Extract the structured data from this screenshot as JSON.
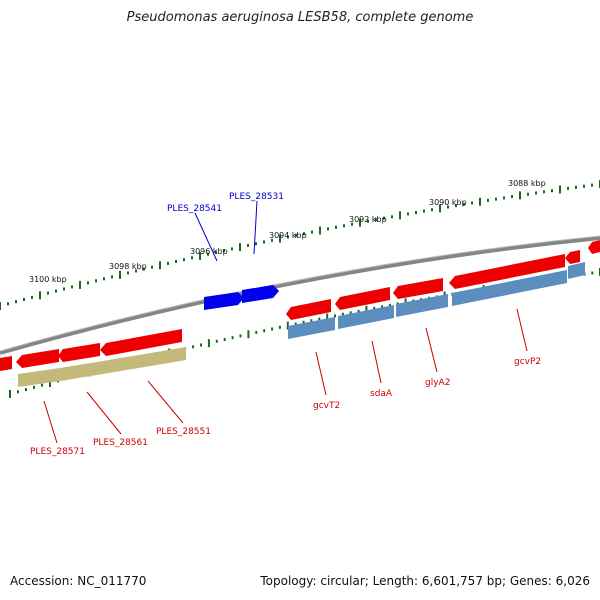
{
  "title": "Pseudomonas aeruginosa LESB58, complete genome",
  "footer": {
    "accession": "Accession: NC_011770",
    "summary": "Topology: circular; Length: 6,601,757 bp; Genes: 6,026"
  },
  "colors": {
    "backbone": "#858585",
    "forward_gene": "#0000ee",
    "reverse_gene": "#ee0000",
    "cds_steelblue": "#5b8dbf",
    "cds_olive": "#c2b97a",
    "tick": "#1a6a1a",
    "label_forward": "#0000cc",
    "label_reverse": "#cc0000"
  },
  "ticks": [
    {
      "label": "3088 kbp"
    },
    {
      "label": "3090 kbp"
    },
    {
      "label": "3092 kbp"
    },
    {
      "label": "3094 kbp"
    },
    {
      "label": "3096 kbp"
    },
    {
      "label": "3098 kbp"
    },
    {
      "label": "3100 kbp"
    }
  ],
  "forward_genes": [
    {
      "label": "PLES_28541"
    },
    {
      "label": "PLES_28531"
    }
  ],
  "reverse_genes": [
    {
      "label": "gcvP2"
    },
    {
      "label": "glyA2"
    },
    {
      "label": "sdaA"
    },
    {
      "label": "gcvT2"
    },
    {
      "label": "PLES_28551"
    },
    {
      "label": "PLES_28561"
    },
    {
      "label": "PLES_28571"
    }
  ]
}
